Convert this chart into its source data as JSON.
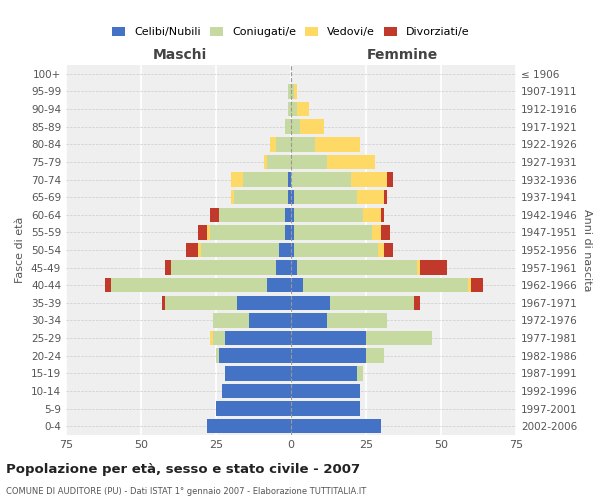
{
  "age_groups": [
    "100+",
    "95-99",
    "90-94",
    "85-89",
    "80-84",
    "75-79",
    "70-74",
    "65-69",
    "60-64",
    "55-59",
    "50-54",
    "45-49",
    "40-44",
    "35-39",
    "30-34",
    "25-29",
    "20-24",
    "15-19",
    "10-14",
    "5-9",
    "0-4"
  ],
  "birth_years": [
    "≤ 1906",
    "1907-1911",
    "1912-1916",
    "1917-1921",
    "1922-1926",
    "1927-1931",
    "1932-1936",
    "1937-1941",
    "1942-1946",
    "1947-1951",
    "1952-1956",
    "1957-1961",
    "1962-1966",
    "1967-1971",
    "1972-1976",
    "1977-1981",
    "1982-1986",
    "1987-1991",
    "1992-1996",
    "1997-2001",
    "2002-2006"
  ],
  "male_celibi": [
    0,
    0,
    0,
    0,
    0,
    0,
    1,
    1,
    2,
    2,
    4,
    5,
    8,
    18,
    14,
    22,
    24,
    22,
    23,
    25,
    28
  ],
  "male_coniugati": [
    0,
    1,
    1,
    2,
    5,
    8,
    15,
    18,
    22,
    25,
    26,
    35,
    52,
    24,
    12,
    4,
    1,
    0,
    0,
    0,
    0
  ],
  "male_vedovi": [
    0,
    0,
    0,
    0,
    2,
    1,
    4,
    1,
    0,
    1,
    1,
    0,
    0,
    0,
    0,
    1,
    0,
    0,
    0,
    0,
    0
  ],
  "male_divorziati": [
    0,
    0,
    0,
    0,
    0,
    0,
    0,
    0,
    3,
    3,
    4,
    2,
    2,
    1,
    0,
    0,
    0,
    0,
    0,
    0,
    0
  ],
  "female_nubili": [
    0,
    0,
    0,
    0,
    0,
    0,
    0,
    1,
    1,
    1,
    1,
    2,
    4,
    13,
    12,
    25,
    25,
    22,
    23,
    23,
    30
  ],
  "female_coniugate": [
    0,
    1,
    2,
    3,
    8,
    12,
    20,
    21,
    23,
    26,
    28,
    40,
    55,
    28,
    20,
    22,
    6,
    2,
    0,
    0,
    0
  ],
  "female_vedove": [
    0,
    1,
    4,
    8,
    15,
    16,
    12,
    9,
    6,
    3,
    2,
    1,
    1,
    0,
    0,
    0,
    0,
    0,
    0,
    0,
    0
  ],
  "female_divorziate": [
    0,
    0,
    0,
    0,
    0,
    0,
    2,
    1,
    1,
    3,
    3,
    9,
    4,
    2,
    0,
    0,
    0,
    0,
    0,
    0,
    0
  ],
  "color_celibi": "#4472C4",
  "color_coniugati": "#C5D9A0",
  "color_vedovi": "#FFD966",
  "color_divorziati": "#C0392B",
  "xlim": 75,
  "title": "Popolazione per età, sesso e stato civile - 2007",
  "subtitle": "COMUNE DI AUDITORE (PU) - Dati ISTAT 1° gennaio 2007 - Elaborazione TUTTITALIA.IT",
  "ylabel_left": "Fasce di età",
  "ylabel_right": "Anni di nascita",
  "label_maschi": "Maschi",
  "label_femmine": "Femmine",
  "legend_labels": [
    "Celibi/Nubili",
    "Coniugati/e",
    "Vedovi/e",
    "Divorziati/e"
  ],
  "bg_color": "#efefef"
}
